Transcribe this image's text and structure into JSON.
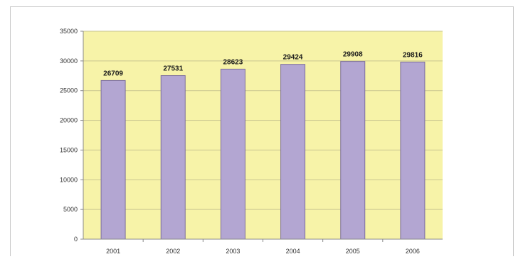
{
  "chart_data": {
    "type": "bar",
    "categories": [
      "2001",
      "2002",
      "2003",
      "2004",
      "2005",
      "2006"
    ],
    "values": [
      26709,
      27531,
      28623,
      29424,
      29908,
      29816
    ],
    "data_labels": [
      "26709",
      "27531",
      "28623",
      "29424",
      "29908",
      "29816"
    ],
    "title": "",
    "xlabel": "",
    "ylabel": "",
    "ylim": [
      0,
      35000
    ],
    "yticks": [
      0,
      5000,
      10000,
      15000,
      20000,
      25000,
      30000,
      35000
    ],
    "ytick_labels": [
      "0",
      "5000",
      "10000",
      "15000",
      "20000",
      "25000",
      "30000",
      "35000"
    ],
    "grid": true,
    "legend": "none",
    "colors": {
      "plot_background": "#f7f3a8",
      "bar_fill": "#b3a6d2",
      "bar_stroke": "#7d6f9e",
      "gridline": "#c9c590"
    }
  }
}
